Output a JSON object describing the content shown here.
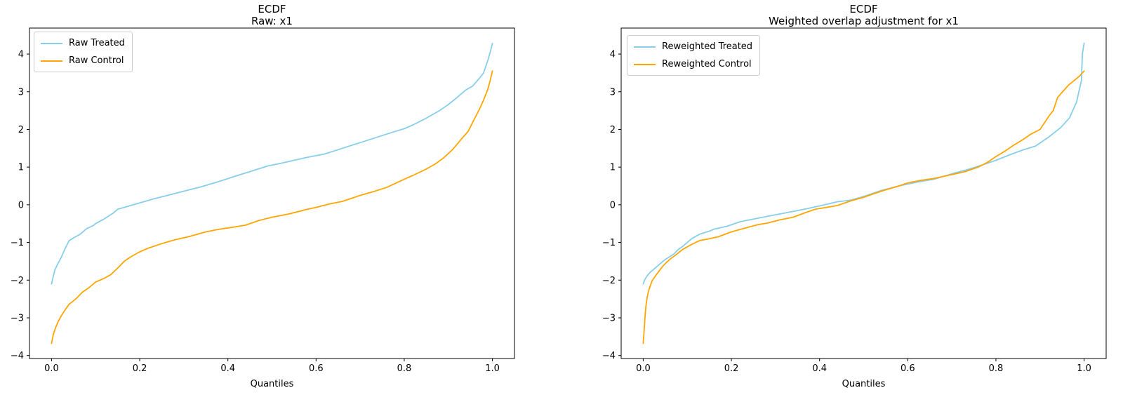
{
  "figure": {
    "background": "#ffffff",
    "text_color": "#000000"
  },
  "chart_data": [
    {
      "type": "line",
      "title": [
        "ECDF",
        "Raw: x1"
      ],
      "xlabel": "Quantiles",
      "grid": false,
      "legend_position": "upper-left",
      "xlim": [
        -0.05,
        1.05
      ],
      "ylim": [
        -4.08,
        4.69
      ],
      "xtick_values": [
        0.0,
        0.2,
        0.4,
        0.6,
        0.8,
        1.0
      ],
      "xtick_labels": [
        "0.0",
        "0.2",
        "0.4",
        "0.6",
        "0.8",
        "1.0"
      ],
      "ytick_values": [
        -4,
        -3,
        -2,
        -1,
        0,
        1,
        2,
        3,
        4
      ],
      "ytick_labels": [
        "−4",
        "−3",
        "−2",
        "−1",
        "0",
        "1",
        "2",
        "3",
        "4"
      ],
      "series": [
        {
          "name": "Raw Treated",
          "color": "#87CEEB",
          "points": [
            [
              0,
              -2.1
            ],
            [
              0.004,
              -1.9
            ],
            [
              0.008,
              -1.72
            ],
            [
              0.015,
              -1.55
            ],
            [
              0.022,
              -1.4
            ],
            [
              0.03,
              -1.18
            ],
            [
              0.04,
              -0.95
            ],
            [
              0.05,
              -0.88
            ],
            [
              0.065,
              -0.78
            ],
            [
              0.08,
              -0.63
            ],
            [
              0.095,
              -0.55
            ],
            [
              0.1,
              -0.5
            ],
            [
              0.12,
              -0.37
            ],
            [
              0.14,
              -0.22
            ],
            [
              0.15,
              -0.12
            ],
            [
              0.17,
              -0.05
            ],
            [
              0.2,
              0.05
            ],
            [
              0.23,
              0.15
            ],
            [
              0.26,
              0.24
            ],
            [
              0.3,
              0.36
            ],
            [
              0.34,
              0.48
            ],
            [
              0.38,
              0.62
            ],
            [
              0.42,
              0.77
            ],
            [
              0.45,
              0.88
            ],
            [
              0.49,
              1.03
            ],
            [
              0.52,
              1.1
            ],
            [
              0.55,
              1.18
            ],
            [
              0.58,
              1.26
            ],
            [
              0.62,
              1.35
            ],
            [
              0.66,
              1.5
            ],
            [
              0.7,
              1.65
            ],
            [
              0.74,
              1.8
            ],
            [
              0.78,
              1.95
            ],
            [
              0.8,
              2.02
            ],
            [
              0.82,
              2.12
            ],
            [
              0.85,
              2.3
            ],
            [
              0.88,
              2.5
            ],
            [
              0.9,
              2.66
            ],
            [
              0.92,
              2.85
            ],
            [
              0.94,
              3.05
            ],
            [
              0.955,
              3.15
            ],
            [
              0.97,
              3.35
            ],
            [
              0.98,
              3.5
            ],
            [
              0.99,
              3.85
            ],
            [
              0.995,
              4.05
            ],
            [
              1,
              4.28
            ]
          ]
        },
        {
          "name": "Raw Control",
          "color": "#FFA500",
          "points": [
            [
              0,
              -3.68
            ],
            [
              0.004,
              -3.45
            ],
            [
              0.008,
              -3.3
            ],
            [
              0.015,
              -3.1
            ],
            [
              0.022,
              -2.95
            ],
            [
              0.03,
              -2.8
            ],
            [
              0.04,
              -2.64
            ],
            [
              0.055,
              -2.5
            ],
            [
              0.07,
              -2.32
            ],
            [
              0.085,
              -2.2
            ],
            [
              0.1,
              -2.05
            ],
            [
              0.12,
              -1.95
            ],
            [
              0.135,
              -1.85
            ],
            [
              0.15,
              -1.68
            ],
            [
              0.165,
              -1.5
            ],
            [
              0.18,
              -1.38
            ],
            [
              0.2,
              -1.25
            ],
            [
              0.22,
              -1.15
            ],
            [
              0.25,
              -1.03
            ],
            [
              0.28,
              -0.93
            ],
            [
              0.31,
              -0.85
            ],
            [
              0.35,
              -0.72
            ],
            [
              0.38,
              -0.65
            ],
            [
              0.42,
              -0.58
            ],
            [
              0.44,
              -0.54
            ],
            [
              0.47,
              -0.42
            ],
            [
              0.5,
              -0.33
            ],
            [
              0.54,
              -0.24
            ],
            [
              0.58,
              -0.12
            ],
            [
              0.6,
              -0.07
            ],
            [
              0.63,
              0.02
            ],
            [
              0.66,
              0.09
            ],
            [
              0.7,
              0.25
            ],
            [
              0.73,
              0.35
            ],
            [
              0.76,
              0.46
            ],
            [
              0.8,
              0.68
            ],
            [
              0.82,
              0.78
            ],
            [
              0.85,
              0.95
            ],
            [
              0.87,
              1.08
            ],
            [
              0.89,
              1.25
            ],
            [
              0.91,
              1.47
            ],
            [
              0.93,
              1.75
            ],
            [
              0.945,
              1.95
            ],
            [
              0.96,
              2.3
            ],
            [
              0.97,
              2.52
            ],
            [
              0.98,
              2.78
            ],
            [
              0.99,
              3.08
            ],
            [
              0.995,
              3.3
            ],
            [
              1,
              3.55
            ]
          ]
        }
      ]
    },
    {
      "type": "line",
      "title": [
        "ECDF",
        "Weighted overlap adjustment for x1"
      ],
      "xlabel": "Quantiles",
      "grid": false,
      "legend_position": "upper-left",
      "xlim": [
        -0.05,
        1.05
      ],
      "ylim": [
        -4.08,
        4.69
      ],
      "xtick_values": [
        0.0,
        0.2,
        0.4,
        0.6,
        0.8,
        1.0
      ],
      "xtick_labels": [
        "0.0",
        "0.2",
        "0.4",
        "0.6",
        "0.8",
        "1.0"
      ],
      "ytick_values": [
        -4,
        -3,
        -2,
        -1,
        0,
        1,
        2,
        3,
        4
      ],
      "ytick_labels": [
        "−4",
        "−3",
        "−2",
        "−1",
        "0",
        "1",
        "2",
        "3",
        "4"
      ],
      "series": [
        {
          "name": "Reweighted Treated",
          "color": "#87CEEB",
          "points": [
            [
              0,
              -2.1
            ],
            [
              0.003,
              -2.0
            ],
            [
              0.008,
              -1.9
            ],
            [
              0.015,
              -1.8
            ],
            [
              0.025,
              -1.7
            ],
            [
              0.04,
              -1.55
            ],
            [
              0.05,
              -1.45
            ],
            [
              0.06,
              -1.38
            ],
            [
              0.07,
              -1.3
            ],
            [
              0.08,
              -1.18
            ],
            [
              0.09,
              -1.1
            ],
            [
              0.1,
              -1.0
            ],
            [
              0.11,
              -0.9
            ],
            [
              0.128,
              -0.78
            ],
            [
              0.15,
              -0.7
            ],
            [
              0.16,
              -0.65
            ],
            [
              0.19,
              -0.57
            ],
            [
              0.22,
              -0.45
            ],
            [
              0.25,
              -0.38
            ],
            [
              0.28,
              -0.31
            ],
            [
              0.32,
              -0.22
            ],
            [
              0.36,
              -0.13
            ],
            [
              0.4,
              -0.03
            ],
            [
              0.44,
              0.08
            ],
            [
              0.47,
              0.12
            ],
            [
              0.5,
              0.22
            ],
            [
              0.54,
              0.38
            ],
            [
              0.58,
              0.5
            ],
            [
              0.62,
              0.6
            ],
            [
              0.66,
              0.68
            ],
            [
              0.7,
              0.82
            ],
            [
              0.74,
              0.95
            ],
            [
              0.78,
              1.1
            ],
            [
              0.8,
              1.18
            ],
            [
              0.83,
              1.32
            ],
            [
              0.86,
              1.45
            ],
            [
              0.89,
              1.56
            ],
            [
              0.92,
              1.8
            ],
            [
              0.947,
              2.05
            ],
            [
              0.967,
              2.31
            ],
            [
              0.983,
              2.73
            ],
            [
              0.99,
              3.1
            ],
            [
              0.994,
              3.3
            ],
            [
              0.996,
              4.0
            ],
            [
              1,
              4.29
            ]
          ]
        },
        {
          "name": "Reweighted Control",
          "color": "#FFA500",
          "points": [
            [
              0,
              -3.68
            ],
            [
              0.002,
              -3.35
            ],
            [
              0.004,
              -3.0
            ],
            [
              0.006,
              -2.7
            ],
            [
              0.009,
              -2.45
            ],
            [
              0.013,
              -2.25
            ],
            [
              0.02,
              -2.02
            ],
            [
              0.03,
              -1.85
            ],
            [
              0.045,
              -1.62
            ],
            [
              0.06,
              -1.45
            ],
            [
              0.075,
              -1.32
            ],
            [
              0.09,
              -1.18
            ],
            [
              0.11,
              -1.05
            ],
            [
              0.128,
              -0.95
            ],
            [
              0.15,
              -0.9
            ],
            [
              0.17,
              -0.85
            ],
            [
              0.2,
              -0.72
            ],
            [
              0.23,
              -0.62
            ],
            [
              0.26,
              -0.53
            ],
            [
              0.283,
              -0.48
            ],
            [
              0.31,
              -0.4
            ],
            [
              0.34,
              -0.33
            ],
            [
              0.37,
              -0.2
            ],
            [
              0.39,
              -0.12
            ],
            [
              0.42,
              -0.06
            ],
            [
              0.44,
              -0.02
            ],
            [
              0.47,
              0.1
            ],
            [
              0.5,
              0.2
            ],
            [
              0.54,
              0.36
            ],
            [
              0.58,
              0.5
            ],
            [
              0.6,
              0.58
            ],
            [
              0.63,
              0.65
            ],
            [
              0.66,
              0.7
            ],
            [
              0.7,
              0.8
            ],
            [
              0.73,
              0.88
            ],
            [
              0.76,
              1.0
            ],
            [
              0.78,
              1.12
            ],
            [
              0.8,
              1.28
            ],
            [
              0.82,
              1.42
            ],
            [
              0.84,
              1.58
            ],
            [
              0.86,
              1.72
            ],
            [
              0.88,
              1.88
            ],
            [
              0.9,
              2.0
            ],
            [
              0.92,
              2.35
            ],
            [
              0.93,
              2.5
            ],
            [
              0.94,
              2.85
            ],
            [
              0.955,
              3.05
            ],
            [
              0.965,
              3.18
            ],
            [
              0.98,
              3.32
            ],
            [
              0.99,
              3.42
            ],
            [
              1,
              3.55
            ]
          ]
        }
      ]
    }
  ]
}
